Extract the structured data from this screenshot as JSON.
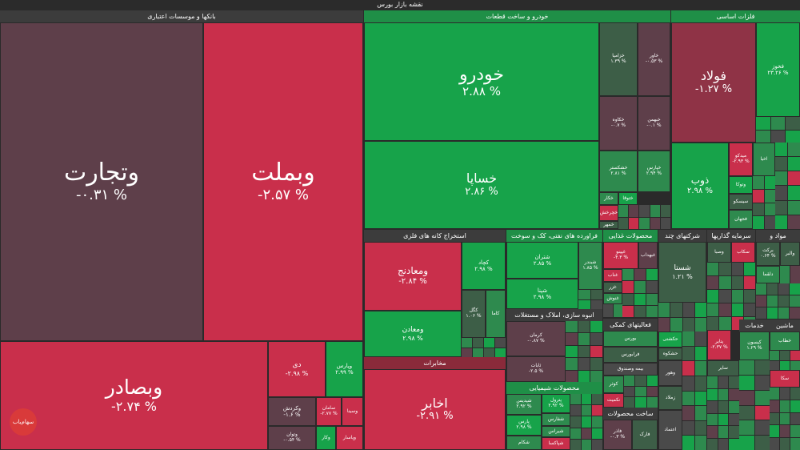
{
  "title": "نقشه بازار بورس",
  "logo_text": "سهام‌یاب",
  "sectors": {
    "banks": "بانکها و موسسات اعتباری",
    "auto": "خودرو و ساخت قطعات",
    "metals": "فلزات اساسی",
    "mining": "استخراج کانه های فلزی",
    "petro": "فراورده های نفتی، کک و سوخت",
    "food": "محصولات غذایی",
    "multi": "شرکتهای چند",
    "investment": "سرمایه گذاریها",
    "materials": "مواد و",
    "telecom": "مخابرات",
    "building": "انبوه سازی، املاک و مستغلات",
    "support": "فعالیتهای کمکی",
    "services": "خدمات",
    "machinery": "ماشین",
    "chemical": "محصولات شیمیایی",
    "metal_products": "ساخت محصولات"
  },
  "tiles": {
    "vtejarat": {
      "name": "وتجارت",
      "value": "-۰.۳۱ %"
    },
    "vbemellat": {
      "name": "وبملت",
      "value": "-۲.۵۷ %"
    },
    "vbsader": {
      "name": "وبصادر",
      "value": "-۲.۷۴ %"
    },
    "day": {
      "name": "دی",
      "value": "-۲.۹۸ %"
    },
    "vpars": {
      "name": "وپارس",
      "value": "۲.۹۹ %"
    },
    "vkardesh": {
      "name": "وکردش",
      "value": "-۱.۶ %"
    },
    "saman": {
      "name": "سامان",
      "value": "-۲.۷۷ %"
    },
    "vsina": {
      "name": "وسینا",
      "value": ""
    },
    "vtovan": {
      "name": "وتوان",
      "value": "-۰.۵۴ %"
    },
    "vkar": {
      "name": "وکار",
      "value": ""
    },
    "vpasar": {
      "name": "وپاسار",
      "value": ""
    },
    "khodro": {
      "name": "خودرو",
      "value": "۲.۸۸ %"
    },
    "khsapa": {
      "name": "خساپا",
      "value": "۲.۸۶ %"
    },
    "khzamia": {
      "name": "خزامیا",
      "value": "۱.۳۹ %"
    },
    "khavar": {
      "name": "خاور",
      "value": "-۰.۵۳ %"
    },
    "khakave": {
      "name": "خکاوه",
      "value": "-۰.۷ %"
    },
    "khbahman": {
      "name": "خبهمن",
      "value": "-۰.۱ %"
    },
    "khshakstar": {
      "name": "خشکستر",
      "value": "۲.۸۱ %"
    },
    "khpars": {
      "name": "خپارس",
      "value": "۲.۹۴ %"
    },
    "khtoghs": {
      "name": "ختوقا",
      "value": ""
    },
    "khkar": {
      "name": "خکار",
      "value": ""
    },
    "khcharkh": {
      "name": "خچرخش",
      "value": ""
    },
    "khmehr": {
      "name": "خمهر",
      "value": ""
    },
    "folad": {
      "name": "فولاد",
      "value": "-۱.۲۷ %"
    },
    "fakhouz": {
      "name": "فخوز",
      "value": "۲۳.۲۶ %"
    },
    "zob": {
      "name": "ذوب",
      "value": "۲.۹۸ %"
    },
    "midko": {
      "name": "میدکو",
      "value": "-۲.۹۳ %"
    },
    "ahya": {
      "name": "اخیا",
      "value": ""
    },
    "vtoka": {
      "name": "وتوکا",
      "value": ""
    },
    "sirisko": {
      "name": "سیسکو",
      "value": ""
    },
    "fajahan": {
      "name": "فجهان",
      "value": ""
    },
    "vmaaden_nj": {
      "name": "ومعادنج",
      "value": "-۲.۸۴ %"
    },
    "vmaaden": {
      "name": "ومعادن",
      "value": "۲.۹۸ %"
    },
    "kchad": {
      "name": "کچاد",
      "value": "۲.۹۸ %"
    },
    "kgol": {
      "name": "کگل",
      "value": "۱.۰۶ %"
    },
    "kama": {
      "name": "کاما",
      "value": ""
    },
    "shetran": {
      "name": "شتران",
      "value": "۲.۸۵ %"
    },
    "shbandar": {
      "name": "شبندر",
      "value": "۱.۸۵ %"
    },
    "shpna": {
      "name": "شپنا",
      "value": "۲.۹۸ %"
    },
    "ghnino": {
      "name": "غپینو",
      "value": "-۴.۳ %"
    },
    "ghbahdab": {
      "name": "غبهداب",
      "value": ""
    },
    "ghnab": {
      "name": "غناب",
      "value": ""
    },
    "ghzar": {
      "name": "غزر",
      "value": ""
    },
    "ghnoosh": {
      "name": "غنوش",
      "value": ""
    },
    "shasta": {
      "name": "شستا",
      "value": "۱.۲۱ %"
    },
    "vsabah": {
      "name": "وصبا",
      "value": ""
    },
    "vsakab": {
      "name": "سکاب",
      "value": ""
    },
    "bark": {
      "name": "برکت",
      "value": "۰.۶۴ %"
    },
    "vlbor": {
      "name": "والبر",
      "value": ""
    },
    "dalqma": {
      "name": "دلقما",
      "value": ""
    },
    "akhabar": {
      "name": "اخابر",
      "value": "-۲.۹۱ %"
    },
    "kerman": {
      "name": "کرمان",
      "value": "-۰.۸۷ %"
    },
    "sabat": {
      "name": "ثابات",
      "value": "-۲.۵ %"
    },
    "hakshti": {
      "name": "حکشتی",
      "value": ""
    },
    "hakshkoh": {
      "name": "حشکوه",
      "value": ""
    },
    "bours": {
      "name": "بورس",
      "value": ""
    },
    "faraboors": {
      "name": "فرابورس",
      "value": ""
    },
    "bime": {
      "name": "بیمه وصندوق",
      "value": ""
    },
    "koor": {
      "name": "کوثر",
      "value": ""
    },
    "vkhomit": {
      "name": "نکمیت",
      "value": ""
    },
    "vhour": {
      "name": "وهور",
      "value": ""
    },
    "zamlad": {
      "name": "زملاد",
      "value": ""
    },
    "etemad": {
      "name": "اعتماد",
      "value": ""
    },
    "ptayer": {
      "name": "پتایر",
      "value": "-۲.۳۷ %"
    },
    "kisoon": {
      "name": "کیسون",
      "value": "۱.۲۹ %"
    },
    "khatab": {
      "name": "خطاب",
      "value": ""
    },
    "saba": {
      "name": "سایر",
      "value": ""
    },
    "sakna": {
      "name": "سکا",
      "value": ""
    },
    "shidis": {
      "name": "شیدیس",
      "value": "۲.۹۲ %"
    },
    "ptrol": {
      "name": "پترول",
      "value": "۲.۹۲ %"
    },
    "pars": {
      "name": "پارس",
      "value": "۲.۹۸ %"
    },
    "shafars": {
      "name": "شفارس",
      "value": ""
    },
    "shiras": {
      "name": "شیراس",
      "value": ""
    },
    "shakam": {
      "name": "شکام",
      "value": ""
    },
    "shpakasa": {
      "name": "شپاکسا",
      "value": ""
    },
    "faz": {
      "name": "فاذر",
      "value": "-۰.۳ %"
    },
    "farak": {
      "name": "فارک",
      "value": ""
    }
  }
}
